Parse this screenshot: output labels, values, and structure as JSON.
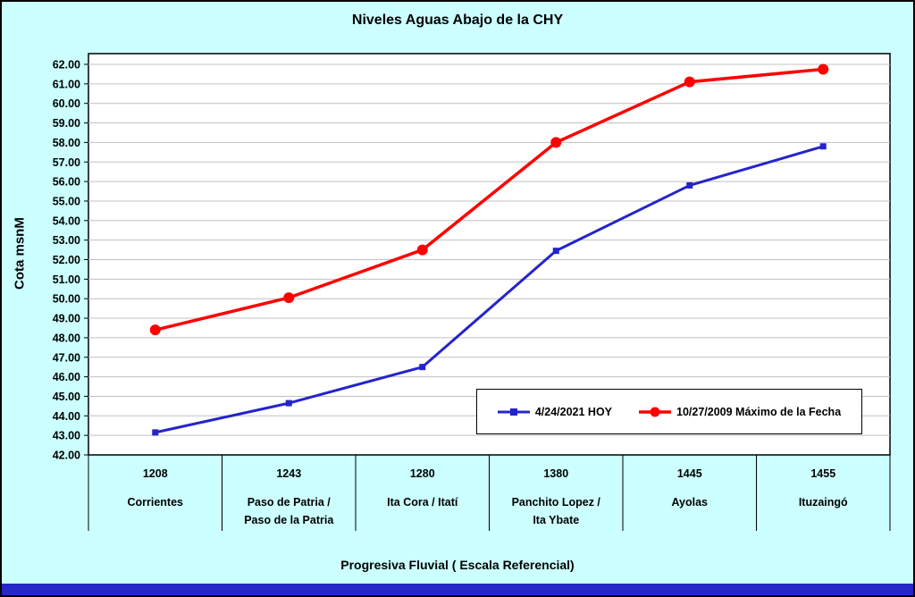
{
  "window": {
    "background": "#CCFFFF",
    "frame_border": "#000000",
    "bottom_bar_color": "#2626C9",
    "plot_background": "#FFFFFF",
    "gridline_color": "#C0C0C0"
  },
  "chart_data": {
    "type": "line",
    "title": "Niveles Aguas Abajo de la CHY",
    "ylabel": "Cota msnM",
    "xlabel": "Progresiva Fluvial ( Escala Referencial)",
    "ylim": [
      42,
      62
    ],
    "ytick_step": 1,
    "ytick_decimals": 2,
    "grid": "horizontal",
    "legend_position": "inside-bottom",
    "categories": [
      {
        "progresiva": "1208",
        "name_lines": [
          "Corrientes"
        ]
      },
      {
        "progresiva": "1243",
        "name_lines": [
          "Paso de Patria /",
          "Paso de la Patria"
        ]
      },
      {
        "progresiva": "1280",
        "name_lines": [
          "Ita Cora / Itatí"
        ]
      },
      {
        "progresiva": "1380",
        "name_lines": [
          "Panchito Lopez /",
          "Ita Ybate"
        ]
      },
      {
        "progresiva": "1445",
        "name_lines": [
          "Ayolas"
        ]
      },
      {
        "progresiva": "1455",
        "name_lines": [
          "Ituzaingó"
        ]
      }
    ],
    "series": [
      {
        "name": "4/24/2021 HOY",
        "color": "#2424CC",
        "marker": "square",
        "values": [
          43.15,
          44.65,
          46.5,
          52.45,
          55.8,
          57.8
        ]
      },
      {
        "name": "10/27/2009 Máximo de la Fecha",
        "color": "#FF0000",
        "marker": "circle",
        "values": [
          48.4,
          50.05,
          52.5,
          58.0,
          61.1,
          61.75
        ]
      }
    ]
  }
}
